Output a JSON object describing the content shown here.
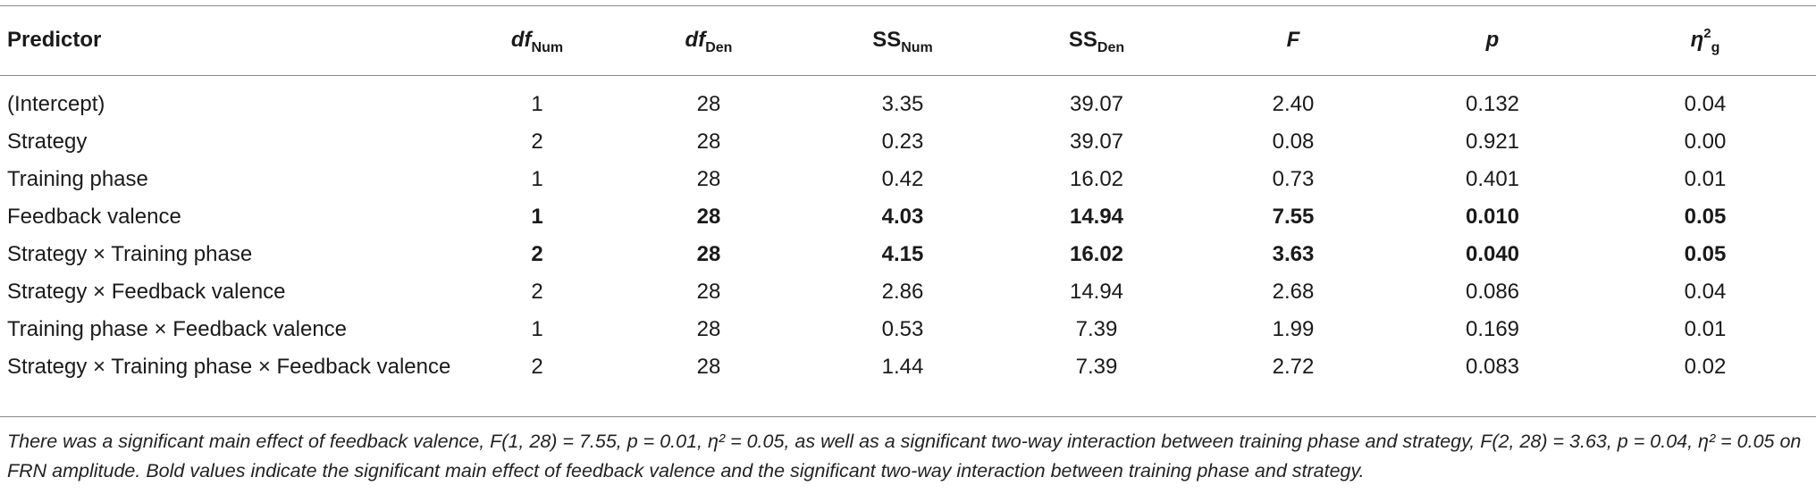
{
  "table": {
    "headers": [
      {
        "main": "Predictor",
        "sub": "",
        "sup": "",
        "italic": false
      },
      {
        "main": "df",
        "sub": "Num",
        "sup": "",
        "italic": true
      },
      {
        "main": "df",
        "sub": "Den",
        "sup": "",
        "italic": true
      },
      {
        "main": "SS",
        "sub": "Num",
        "sup": "",
        "italic": false
      },
      {
        "main": "SS",
        "sub": "Den",
        "sup": "",
        "italic": false
      },
      {
        "main": "F",
        "sub": "",
        "sup": "",
        "italic": true
      },
      {
        "main": "p",
        "sub": "",
        "sup": "",
        "italic": true
      },
      {
        "main": "η",
        "sub": "g",
        "sup": "2",
        "italic": true
      }
    ],
    "rows": [
      {
        "predictor": "(Intercept)",
        "df_num": "1",
        "df_den": "28",
        "ss_num": "3.35",
        "ss_den": "39.07",
        "F": "2.40",
        "p": "0.132",
        "eta": "0.04",
        "bold": false
      },
      {
        "predictor": "Strategy",
        "df_num": "2",
        "df_den": "28",
        "ss_num": "0.23",
        "ss_den": "39.07",
        "F": "0.08",
        "p": "0.921",
        "eta": "0.00",
        "bold": false
      },
      {
        "predictor": "Training phase",
        "df_num": "1",
        "df_den": "28",
        "ss_num": "0.42",
        "ss_den": "16.02",
        "F": "0.73",
        "p": "0.401",
        "eta": "0.01",
        "bold": false
      },
      {
        "predictor": "Feedback valence",
        "df_num": "1",
        "df_den": "28",
        "ss_num": "4.03",
        "ss_den": "14.94",
        "F": "7.55",
        "p": "0.010",
        "eta": "0.05",
        "bold": true
      },
      {
        "predictor": "Strategy × Training phase",
        "df_num": "2",
        "df_den": "28",
        "ss_num": "4.15",
        "ss_den": "16.02",
        "F": "3.63",
        "p": "0.040",
        "eta": "0.05",
        "bold": true
      },
      {
        "predictor": "Strategy × Feedback valence",
        "df_num": "2",
        "df_den": "28",
        "ss_num": "2.86",
        "ss_den": "14.94",
        "F": "2.68",
        "p": "0.086",
        "eta": "0.04",
        "bold": false
      },
      {
        "predictor": "Training phase × Feedback valence",
        "df_num": "1",
        "df_den": "28",
        "ss_num": "0.53",
        "ss_den": "7.39",
        "F": "1.99",
        "p": "0.169",
        "eta": "0.01",
        "bold": false
      },
      {
        "predictor": "Strategy × Training phase × Feedback valence",
        "df_num": "2",
        "df_den": "28",
        "ss_num": "1.44",
        "ss_den": "7.39",
        "F": "2.72",
        "p": "0.083",
        "eta": "0.02",
        "bold": false
      }
    ]
  },
  "footnote": "There was a significant main effect of feedback valence, F(1, 28) = 7.55, p = 0.01, η² = 0.05, as well as a significant two-way interaction between training phase and strategy, F(2, 28) = 3.63, p = 0.04, η² = 0.05 on FRN amplitude. Bold values indicate the significant main effect of feedback valence and the significant two-way interaction between training phase and strategy."
}
